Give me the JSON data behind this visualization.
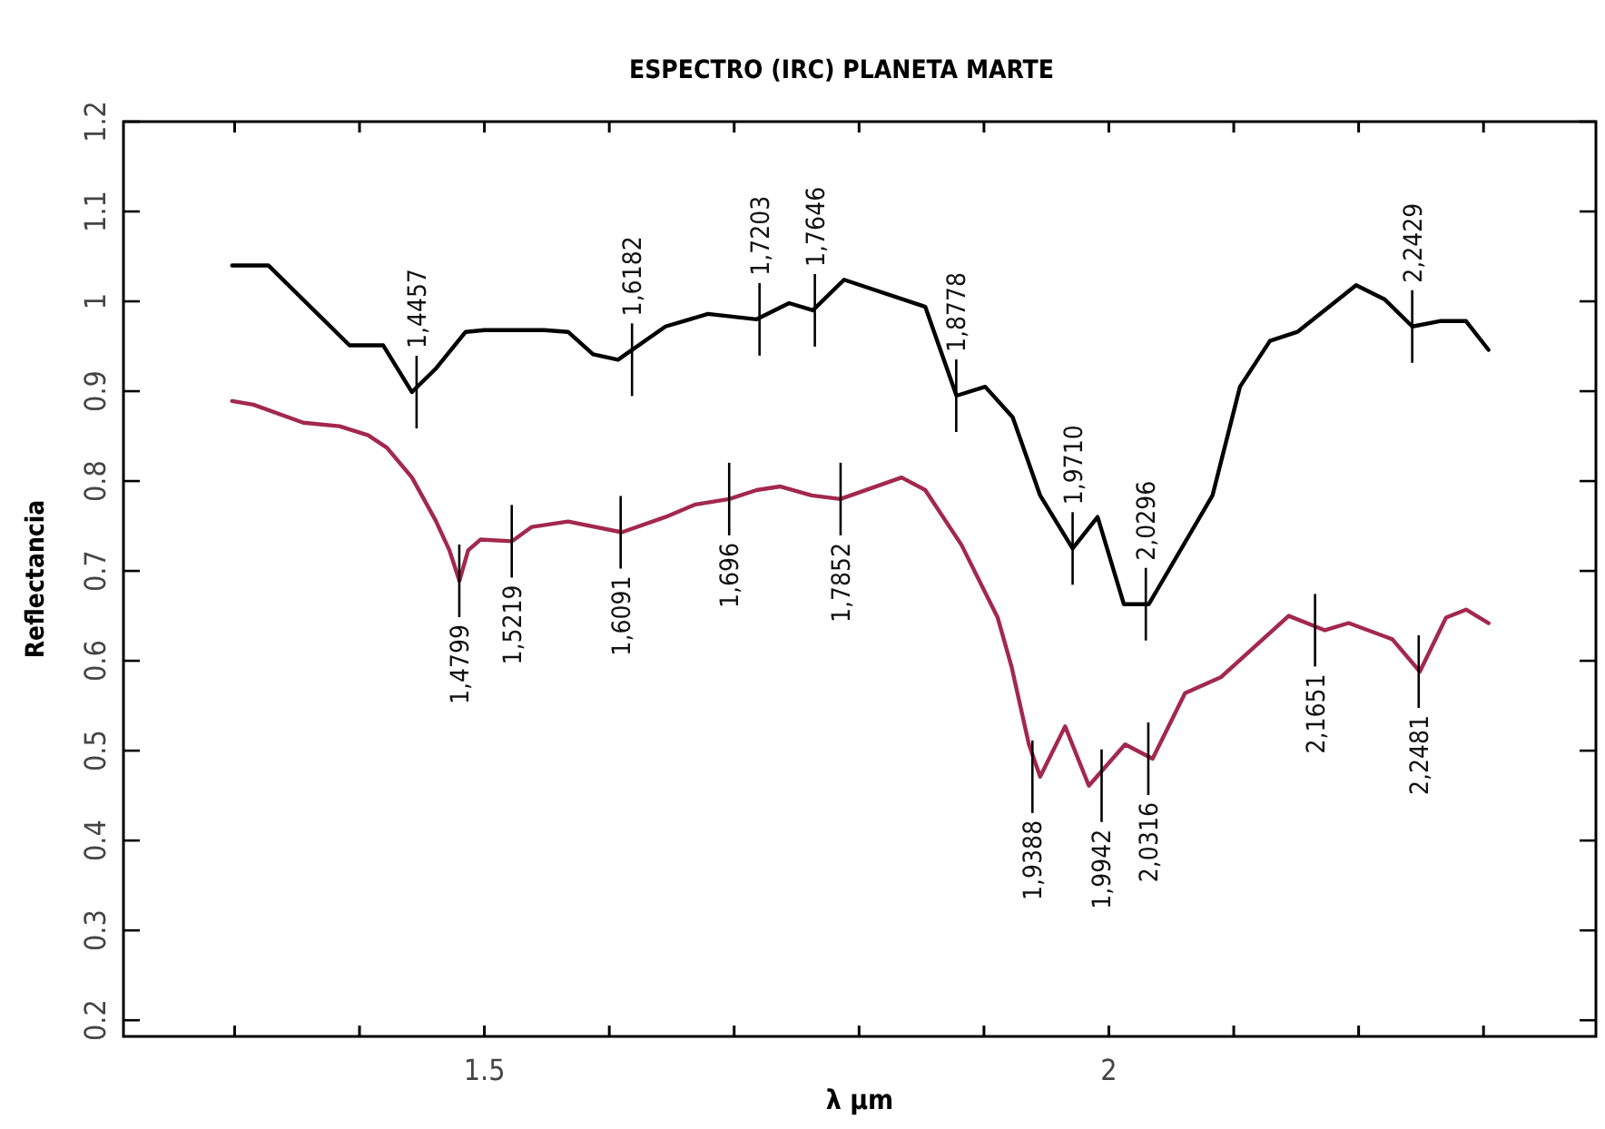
{
  "chart_data": {
    "type": "line",
    "title": "ESPECTRO (IRC) PLANETA MARTE",
    "xlabel": "λ µm",
    "ylabel": "Reflectancia",
    "xlim": [
      1.211,
      2.39
    ],
    "ylim": [
      0.182,
      1.2
    ],
    "xticks": [
      {
        "value": 1.3,
        "label": null
      },
      {
        "value": 1.4,
        "label": null
      },
      {
        "value": 1.5,
        "label": "1.5"
      },
      {
        "value": 1.6,
        "label": null
      },
      {
        "value": 1.7,
        "label": null
      },
      {
        "value": 1.8,
        "label": null
      },
      {
        "value": 1.9,
        "label": null
      },
      {
        "value": 2,
        "label": "2"
      },
      {
        "value": 2.1,
        "label": null
      },
      {
        "value": 2.2,
        "label": null
      },
      {
        "value": 2.3,
        "label": null
      }
    ],
    "yticks": [
      0.2,
      0.3,
      0.4,
      0.5,
      0.6,
      0.7,
      0.8,
      0.9,
      1,
      1.1,
      1.2
    ],
    "grid": false,
    "marker": "none",
    "line_style": "solid",
    "series": [
      {
        "color": "#000000",
        "x": [
          1.298,
          1.327,
          1.392,
          1.419,
          1.442,
          1.461,
          1.485,
          1.5,
          1.548,
          1.567,
          1.587,
          1.607,
          1.645,
          1.679,
          1.718,
          1.744,
          1.763,
          1.788,
          1.853,
          1.878,
          1.901,
          1.923,
          1.945,
          1.971,
          1.991,
          2.012,
          2.032,
          2.083,
          2.105,
          2.129,
          2.151,
          2.198,
          2.221,
          2.243,
          2.265,
          2.286,
          2.304
        ],
        "values": [
          1.04,
          1.04,
          0.951,
          0.951,
          0.899,
          0.925,
          0.966,
          0.968,
          0.968,
          0.966,
          0.941,
          0.935,
          0.972,
          0.986,
          0.98,
          0.998,
          0.99,
          1.024,
          0.994,
          0.895,
          0.905,
          0.871,
          0.784,
          0.725,
          0.76,
          0.663,
          0.663,
          0.784,
          0.905,
          0.956,
          0.966,
          1.018,
          1.002,
          0.972,
          0.978,
          0.978,
          0.946
        ]
      },
      {
        "color": "#a3284e",
        "x": [
          1.298,
          1.315,
          1.355,
          1.384,
          1.407,
          1.422,
          1.442,
          1.461,
          1.472,
          1.48,
          1.487,
          1.497,
          1.522,
          1.538,
          1.567,
          1.61,
          1.645,
          1.669,
          1.696,
          1.718,
          1.737,
          1.762,
          1.785,
          1.834,
          1.853,
          1.882,
          1.911,
          1.922,
          1.936,
          1.945,
          1.965,
          1.984,
          2.013,
          2.035,
          2.061,
          2.09,
          2.144,
          2.173,
          2.192,
          2.227,
          2.249,
          2.27,
          2.286,
          2.304
        ],
        "values": [
          0.889,
          0.885,
          0.865,
          0.861,
          0.851,
          0.837,
          0.804,
          0.756,
          0.723,
          0.689,
          0.723,
          0.735,
          0.733,
          0.749,
          0.755,
          0.743,
          0.76,
          0.774,
          0.78,
          0.79,
          0.794,
          0.784,
          0.78,
          0.804,
          0.79,
          0.729,
          0.648,
          0.594,
          0.507,
          0.471,
          0.527,
          0.461,
          0.507,
          0.491,
          0.564,
          0.582,
          0.65,
          0.634,
          0.642,
          0.624,
          0.588,
          0.648,
          0.657,
          0.642
        ]
      }
    ],
    "annotations": [
      {
        "text": "1,4457",
        "x": 1.4457,
        "y": 0.899
      },
      {
        "text": "1,6182",
        "x": 1.6182,
        "y": 0.935
      },
      {
        "text": "1,7203",
        "x": 1.7203,
        "y": 0.98
      },
      {
        "text": "1,7646",
        "x": 1.7646,
        "y": 0.99
      },
      {
        "text": "1,8778",
        "x": 1.8778,
        "y": 0.895
      },
      {
        "text": "1,9710",
        "x": 1.971,
        "y": 0.725
      },
      {
        "text": "2,0296",
        "x": 2.0296,
        "y": 0.663
      },
      {
        "text": "2,2429",
        "x": 2.2429,
        "y": 0.972
      },
      {
        "text": "1,4799",
        "x": 1.4799,
        "y": 0.689
      },
      {
        "text": "1,5219",
        "x": 1.5219,
        "y": 0.733
      },
      {
        "text": "1,6091",
        "x": 1.6091,
        "y": 0.743
      },
      {
        "text": "1,696",
        "x": 1.696,
        "y": 0.78
      },
      {
        "text": "1,7852",
        "x": 1.7852,
        "y": 0.78
      },
      {
        "text": "1,9388",
        "x": 1.9388,
        "y": 0.471
      },
      {
        "text": "1,9942",
        "x": 1.9942,
        "y": 0.461
      },
      {
        "text": "2,0316",
        "x": 2.0316,
        "y": 0.491
      },
      {
        "text": "2,1651",
        "x": 2.1651,
        "y": 0.634
      },
      {
        "text": "2,2481",
        "x": 2.2481,
        "y": 0.588
      }
    ]
  }
}
